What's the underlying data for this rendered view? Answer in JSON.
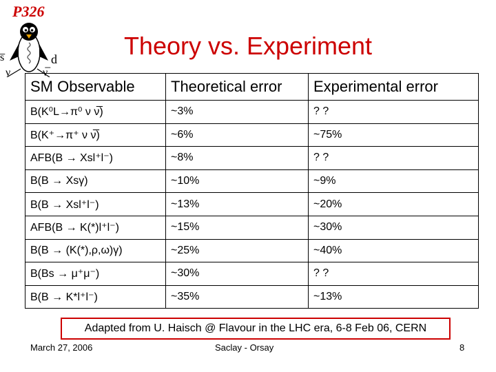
{
  "logo": {
    "text": "P326",
    "quark_left": "s̅",
    "quark_right": "d",
    "nu_left": "ν",
    "nu_right": "ν̅"
  },
  "title": "Theory vs. Experiment",
  "table": {
    "headers": [
      "SM Observable",
      "Theoretical error",
      "Experimental error"
    ],
    "rows": [
      {
        "observable": "B(K⁰L→π⁰ ν ν̅)",
        "theory": "~3%",
        "experiment": "? ?"
      },
      {
        "observable": "B(K⁺→π⁺ ν ν̅)",
        "theory": "~6%",
        "experiment": "~75%"
      },
      {
        "observable": "AFB(B → Xsl⁺l⁻)",
        "theory": "~8%",
        "experiment": "? ?"
      },
      {
        "observable": "B(B → Xsγ)",
        "theory": "~10%",
        "experiment": "~9%"
      },
      {
        "observable": "B(B → Xsl⁺l⁻)",
        "theory": "~13%",
        "experiment": "~20%"
      },
      {
        "observable": "AFB(B → K(*)l⁺l⁻)",
        "theory": "~15%",
        "experiment": "~30%"
      },
      {
        "observable": "B(B → (K(*),ρ,ω)γ)",
        "theory": "~25%",
        "experiment": "~40%"
      },
      {
        "observable": "B(Bs → μ⁺μ⁻)",
        "theory": "~30%",
        "experiment": "? ?"
      },
      {
        "observable": "B(B → K*l⁺l⁻)",
        "theory": "~35%",
        "experiment": "~13%"
      }
    ]
  },
  "credit": "Adapted from U. Haisch @ Flavour in the LHC era, 6-8 Feb 06, CERN",
  "footer": {
    "date": "March 27, 2006",
    "venue": "Saclay - Orsay",
    "page": "8"
  },
  "colors": {
    "accent": "#cc0000",
    "text": "#000000",
    "background": "#ffffff"
  }
}
